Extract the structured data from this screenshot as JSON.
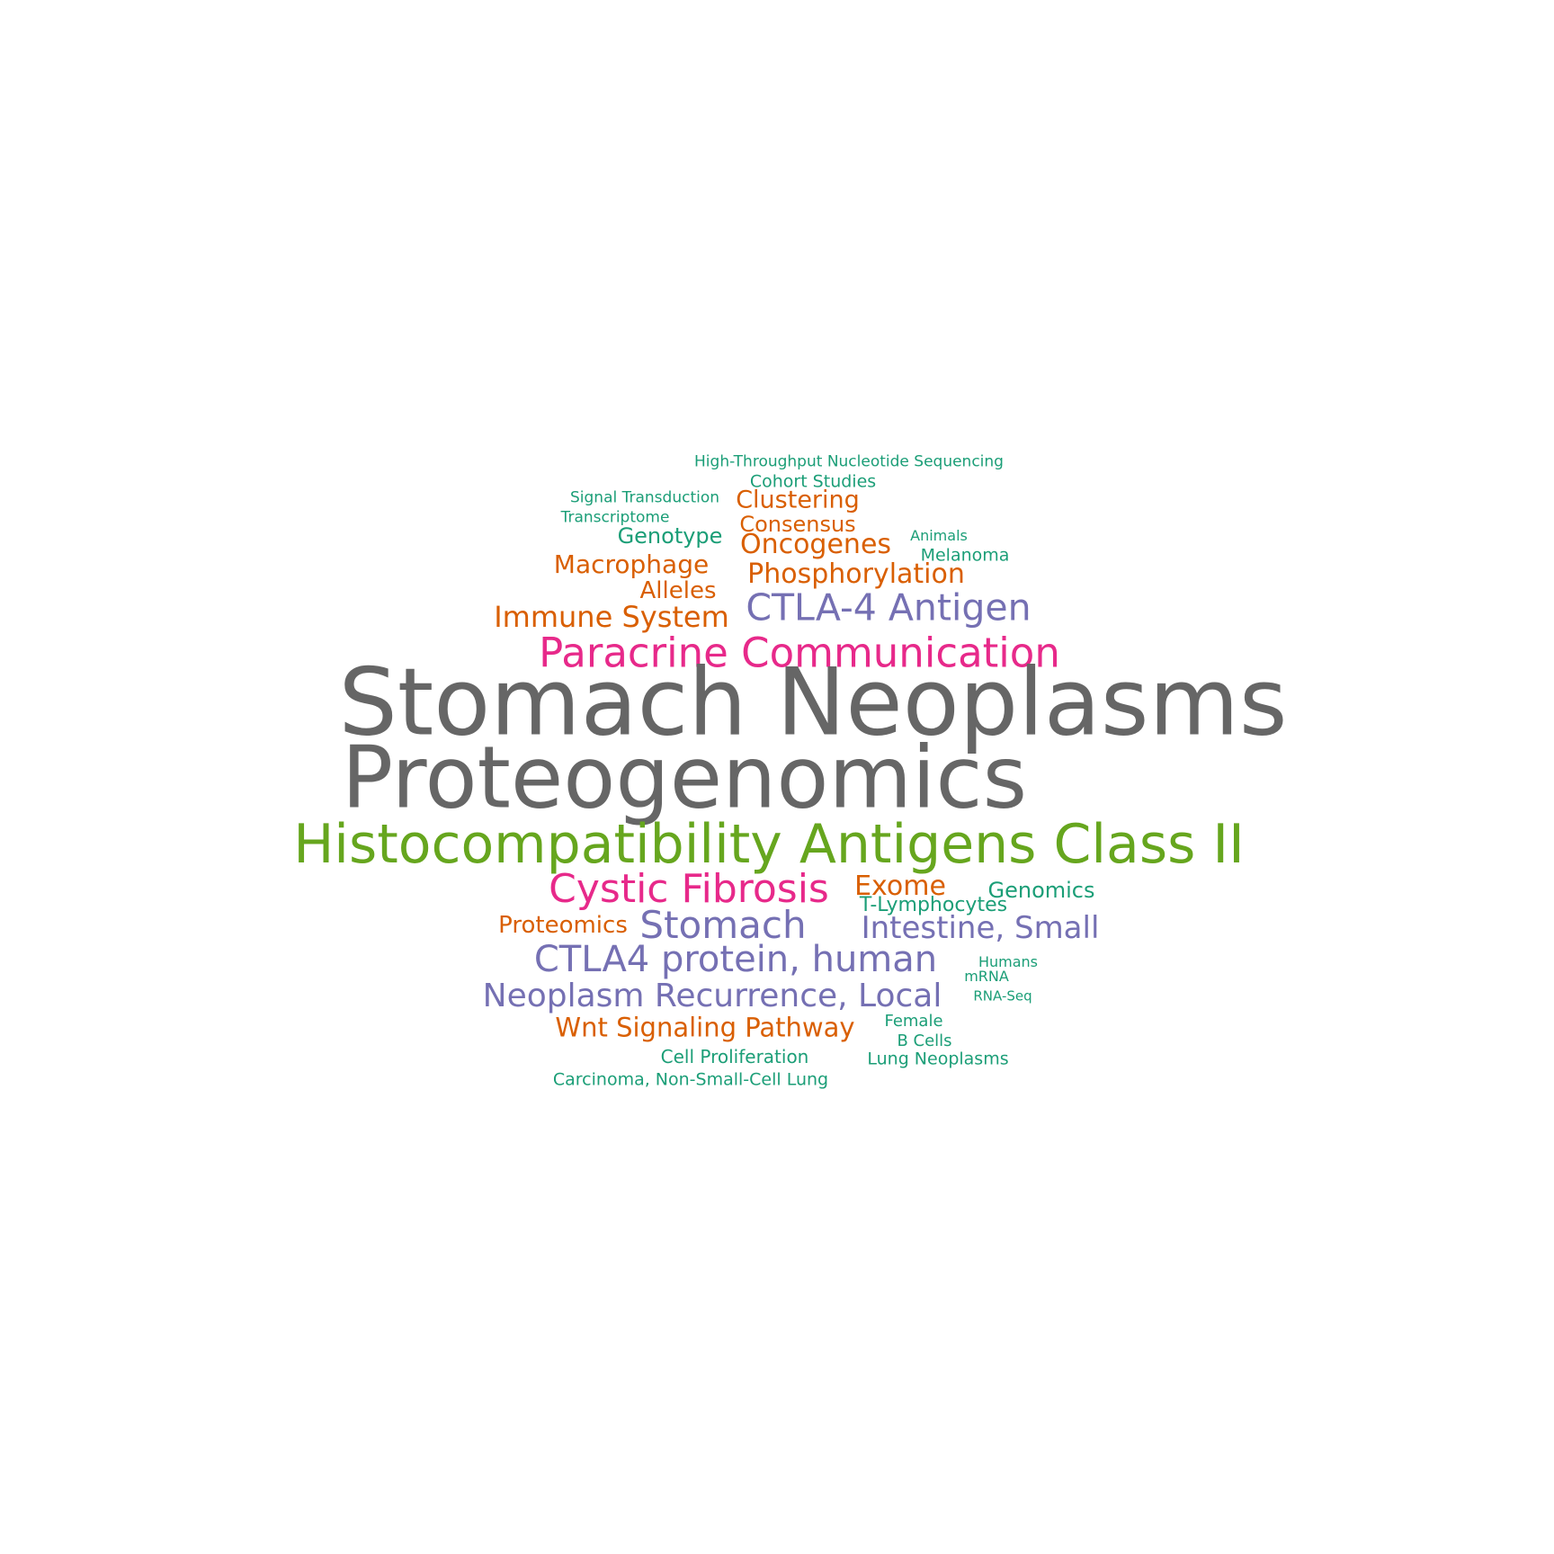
{
  "palette": {
    "gray": "#666666",
    "green": "#66a61e",
    "pink": "#e7298a",
    "purple": "#7570b3",
    "orange": "#d95f02",
    "teal": "#1b9e77"
  },
  "words": [
    {
      "text": "High-Throughput Nucleotide Sequencing",
      "color": "#1b9e77"
    },
    {
      "text": "Cohort Studies",
      "color": "#1b9e77"
    },
    {
      "text": "Signal Transduction",
      "color": "#1b9e77"
    },
    {
      "text": "Clustering",
      "color": "#d95f02"
    },
    {
      "text": "Transcriptome",
      "color": "#1b9e77"
    },
    {
      "text": "Consensus",
      "color": "#d95f02"
    },
    {
      "text": "Genotype",
      "color": "#1b9e77"
    },
    {
      "text": "Animals",
      "color": "#1b9e77"
    },
    {
      "text": "Oncogenes",
      "color": "#d95f02"
    },
    {
      "text": "Melanoma",
      "color": "#1b9e77"
    },
    {
      "text": "Macrophage",
      "color": "#d95f02"
    },
    {
      "text": "Phosphorylation",
      "color": "#d95f02"
    },
    {
      "text": "Alleles",
      "color": "#d95f02"
    },
    {
      "text": "CTLA-4 Antigen",
      "color": "#7570b3"
    },
    {
      "text": "Immune System",
      "color": "#d95f02"
    },
    {
      "text": "Paracrine Communication",
      "color": "#e7298a"
    },
    {
      "text": "Stomach Neoplasms",
      "color": "#666666"
    },
    {
      "text": "Proteogenomics",
      "color": "#666666"
    },
    {
      "text": "Histocompatibility Antigens Class II",
      "color": "#66a61e"
    },
    {
      "text": "Cystic Fibrosis",
      "color": "#e7298a"
    },
    {
      "text": "Exome",
      "color": "#d95f02"
    },
    {
      "text": "Genomics",
      "color": "#1b9e77"
    },
    {
      "text": "T-Lymphocytes",
      "color": "#1b9e77"
    },
    {
      "text": "Proteomics",
      "color": "#d95f02"
    },
    {
      "text": "Stomach",
      "color": "#7570b3"
    },
    {
      "text": "Intestine, Small",
      "color": "#7570b3"
    },
    {
      "text": "CTLA4 protein, human",
      "color": "#7570b3"
    },
    {
      "text": "Humans",
      "color": "#1b9e77"
    },
    {
      "text": "mRNA",
      "color": "#1b9e77"
    },
    {
      "text": "Neoplasm Recurrence, Local",
      "color": "#7570b3"
    },
    {
      "text": "RNA-Seq",
      "color": "#1b9e77"
    },
    {
      "text": "Female",
      "color": "#1b9e77"
    },
    {
      "text": "Wnt Signaling Pathway",
      "color": "#d95f02"
    },
    {
      "text": "B Cells",
      "color": "#1b9e77"
    },
    {
      "text": "Cell Proliferation",
      "color": "#1b9e77"
    },
    {
      "text": "Lung Neoplasms",
      "color": "#1b9e77"
    },
    {
      "text": "Carcinoma, Non-Small-Cell Lung",
      "color": "#1b9e77"
    }
  ]
}
